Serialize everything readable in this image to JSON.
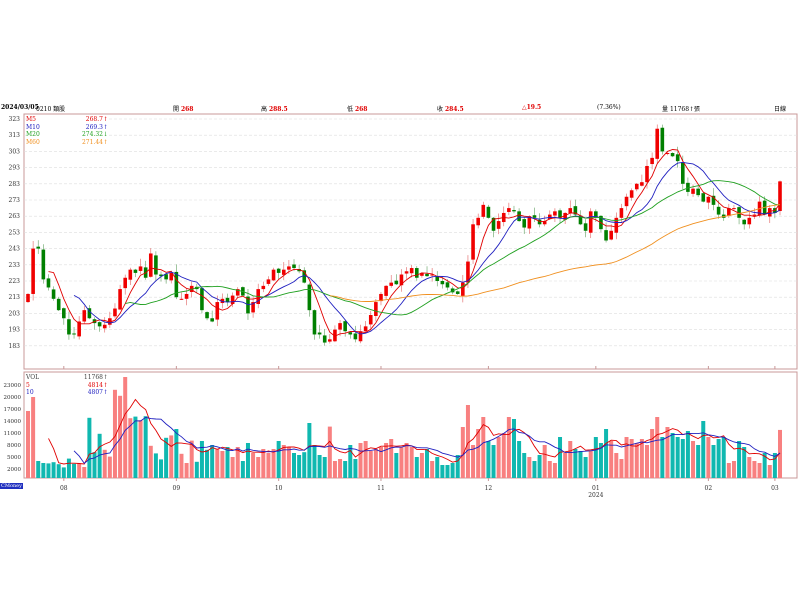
{
  "header": {
    "date": "2024/03/05",
    "code": "0210 類股",
    "open_label": "開",
    "open": "268",
    "high_label": "高",
    "high": "288.5",
    "low_label": "低",
    "low": "268",
    "close_label": "收",
    "close": "284.5",
    "change": "△19.5",
    "change_pct": "(7.36%)",
    "volume_label": "量",
    "volume": "11768↑張",
    "period": "日線"
  },
  "price_legend": [
    {
      "name": "M5",
      "value": "268.7↑",
      "color": "#e00000"
    },
    {
      "name": "M10",
      "value": "269.3↑",
      "color": "#2020c0"
    },
    {
      "name": "M20",
      "value": "274.32↓",
      "color": "#20a020"
    },
    {
      "name": "M60",
      "value": "271.44↑",
      "color": "#f09020"
    }
  ],
  "vol_legend": [
    {
      "name": "VOL",
      "value": "11768↑",
      "color": "#404040"
    },
    {
      "name": "5",
      "value": "4814↑",
      "color": "#e00000"
    },
    {
      "name": "10",
      "value": "4807↑",
      "color": "#2020c0"
    }
  ],
  "brand": "CMoney",
  "chart_data": {
    "type": "candlestick",
    "price_axis": {
      "ticks": [
        323,
        313,
        303,
        293,
        283,
        273,
        263,
        253,
        243,
        233,
        223,
        213,
        203,
        193,
        183
      ],
      "range": [
        177,
        325
      ]
    },
    "volume_axis": {
      "ticks": [
        23000,
        20000,
        17000,
        14000,
        11000,
        8000,
        5000,
        2000
      ],
      "range": [
        0,
        26000
      ]
    },
    "months": [
      {
        "label": "08",
        "i": 7
      },
      {
        "label": "09",
        "i": 29
      },
      {
        "label": "10",
        "i": 49
      },
      {
        "label": "11",
        "i": 69
      },
      {
        "label": "12",
        "i": 90
      },
      {
        "label": "01",
        "i": 111,
        "year": "2024"
      },
      {
        "label": "02",
        "i": 133
      },
      {
        "label": "03",
        "i": 146
      }
    ],
    "close": [
      215,
      243,
      243,
      224,
      219,
      212,
      205,
      200,
      190,
      190,
      198,
      205,
      200,
      197,
      195,
      196,
      200,
      206,
      218,
      225,
      230,
      228,
      232,
      225,
      240,
      227,
      226,
      224,
      228,
      213,
      212,
      215,
      220,
      218,
      205,
      200,
      198,
      210,
      212,
      210,
      214,
      218,
      214,
      203,
      210,
      218,
      220,
      224,
      230,
      228,
      230,
      232,
      231,
      229,
      222,
      205,
      190,
      190,
      185,
      187,
      193,
      197,
      192,
      190,
      187,
      192,
      195,
      202,
      210,
      215,
      220,
      222,
      221,
      227,
      229,
      231,
      225,
      228,
      226,
      227,
      223,
      221,
      219,
      216,
      215,
      222,
      235,
      258,
      262,
      270,
      262,
      254,
      260,
      265,
      268,
      266,
      260,
      256,
      263,
      262,
      258,
      260,
      264,
      266,
      262,
      265,
      268,
      264,
      258,
      254,
      266,
      262,
      255,
      248,
      254,
      262,
      268,
      275,
      279,
      283,
      284,
      294,
      299,
      317,
      303,
      302,
      300,
      297,
      283,
      278,
      280,
      276,
      272,
      275,
      270,
      264,
      262,
      268,
      268,
      262,
      258,
      262,
      264,
      272,
      264,
      268,
      265,
      284.5
    ],
    "volume": [
      16500,
      20800,
      4000,
      3500,
      3400,
      3700,
      3200,
      2400,
      4600,
      3300,
      3400,
      2500,
      14800,
      6200,
      10800,
      6800,
      5100,
      21800,
      20300,
      25000,
      14700,
      15100,
      14200,
      15200,
      7800,
      5900,
      4400,
      9800,
      10400,
      12000,
      5800,
      3500,
      9100,
      3800,
      9000,
      6800,
      8000,
      7000,
      6500,
      7500,
      5000,
      7500,
      4000,
      8500,
      6000,
      5000,
      7000,
      6000,
      7000,
      9000,
      8000,
      7500,
      6000,
      5500,
      6200,
      13500,
      8000,
      5500,
      5000,
      12600,
      4000,
      4500,
      4000,
      8000,
      4500,
      8500,
      9000,
      6500,
      7000,
      7500,
      8500,
      9500,
      6000,
      7500,
      8500,
      7500,
      5000,
      6000,
      7000,
      4000,
      5000,
      3000,
      3000,
      3500,
      5500,
      12500,
      18000,
      8000,
      12000,
      15000,
      9000,
      8000,
      10000,
      11000,
      15000,
      14500,
      9000,
      6000,
      5000,
      4000,
      5500,
      8000,
      4000,
      3500,
      10000,
      6000,
      9000,
      7000,
      6500,
      5000,
      6500,
      10000,
      8500,
      12000,
      9000,
      6000,
      4500,
      10000,
      9500,
      8500,
      9500,
      8000,
      12000,
      15000,
      10000,
      12500,
      11000,
      10000,
      9500,
      11500,
      9000,
      8000,
      14000,
      10000,
      8000,
      9500,
      10000,
      3500,
      4000,
      9000,
      7500,
      5000,
      4000,
      3500,
      6000,
      3000,
      6000,
      11768
    ],
    "ma_periods": [
      5,
      10,
      20,
      60
    ]
  }
}
